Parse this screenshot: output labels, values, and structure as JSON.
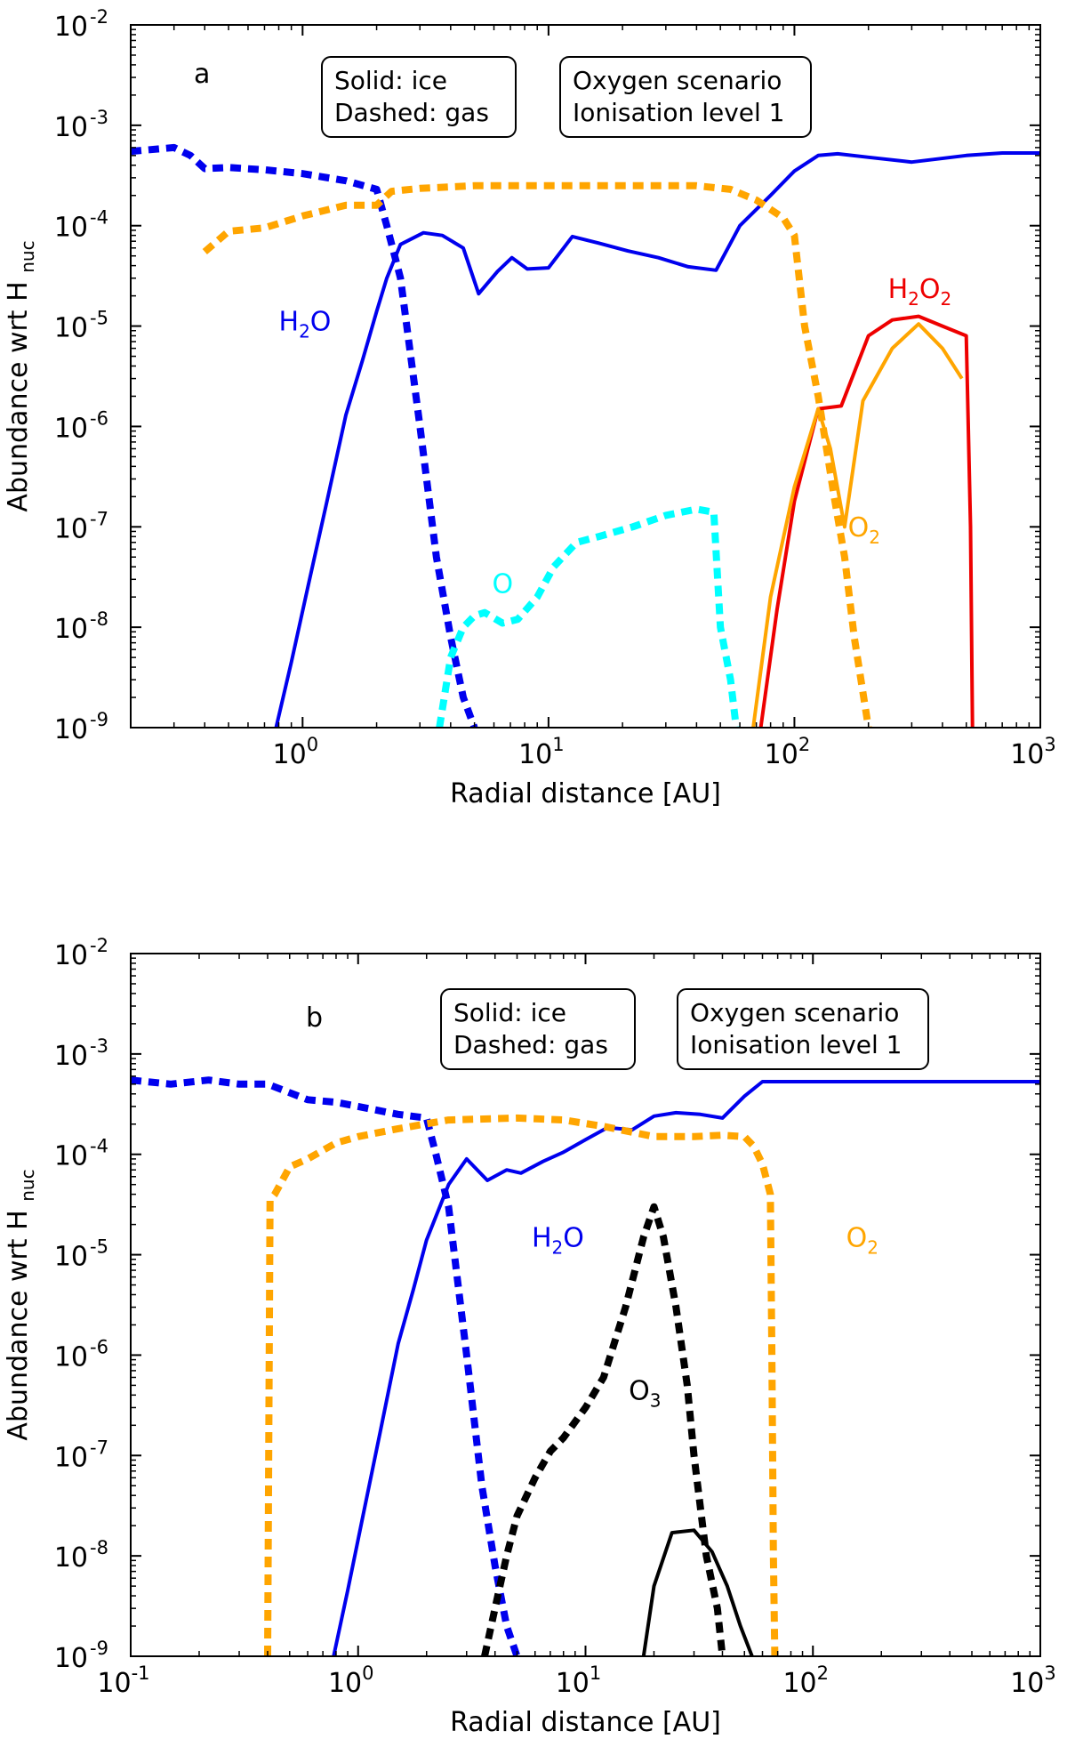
{
  "chart_data": [
    {
      "type": "line",
      "panel_label": "a",
      "xlabel": "Radial distance [AU]",
      "ylabel": "Abundance wrt H",
      "ylabel_sub": "nuc",
      "xscale": "log",
      "yscale": "log",
      "xlim": [
        0.2,
        1000
      ],
      "ylim": [
        1e-09,
        0.01
      ],
      "xticks": [
        {
          "value": 1,
          "base": "10",
          "exp": "0"
        },
        {
          "value": 10,
          "base": "10",
          "exp": "1"
        },
        {
          "value": 100,
          "base": "10",
          "exp": "2"
        },
        {
          "value": 1000,
          "base": "10",
          "exp": "3"
        }
      ],
      "yticks": [
        {
          "value": 1e-09,
          "base": "10",
          "exp": "-9"
        },
        {
          "value": 1e-08,
          "base": "10",
          "exp": "-8"
        },
        {
          "value": 1e-07,
          "base": "10",
          "exp": "-7"
        },
        {
          "value": 1e-06,
          "base": "10",
          "exp": "-6"
        },
        {
          "value": 1e-05,
          "base": "10",
          "exp": "-5"
        },
        {
          "value": 0.0001,
          "base": "10",
          "exp": "-4"
        },
        {
          "value": 0.001,
          "base": "10",
          "exp": "-3"
        },
        {
          "value": 0.01,
          "base": "10",
          "exp": "-2"
        }
      ],
      "legend_box": {
        "line1": "Solid: ice",
        "line2": "Dashed: gas"
      },
      "scenario_box": {
        "line1": "Oxygen scenario",
        "line2": "Ionisation level 1"
      },
      "series": [
        {
          "name": "H2O ice",
          "color": "#0000ee",
          "style": "solid",
          "x": [
            0.78,
            0.9,
            1.05,
            1.25,
            1.5,
            1.75,
            2.0,
            2.2,
            2.5,
            3.1,
            3.7,
            4.5,
            5.2,
            6.2,
            7.1,
            8.2,
            10,
            12.5,
            16,
            21,
            28,
            37,
            48,
            60,
            80,
            100,
            125,
            150,
            200,
            300,
            500,
            700,
            1000
          ],
          "y": [
            1e-09,
            4.5e-09,
            2.5e-08,
            1.7e-07,
            1.3e-06,
            4.5e-06,
            1.4e-05,
            3e-05,
            6.5e-05,
            8.5e-05,
            8e-05,
            6e-05,
            2.1e-05,
            3.5e-05,
            4.8e-05,
            3.7e-05,
            3.8e-05,
            7.8e-05,
            6.7e-05,
            5.6e-05,
            4.8e-05,
            3.9e-05,
            3.6e-05,
            0.0001,
            0.0002,
            0.00035,
            0.0005,
            0.00052,
            0.00048,
            0.00043,
            0.0005,
            0.00053,
            0.00053
          ]
        },
        {
          "name": "H2O gas",
          "color": "#0000ee",
          "style": "dashed",
          "x": [
            0.2,
            0.3,
            0.35,
            0.4,
            0.5,
            0.7,
            1.0,
            1.5,
            2.0,
            2.2,
            2.5,
            3.0,
            3.5,
            4.0,
            4.5,
            5.0
          ],
          "y": [
            0.00055,
            0.0006,
            0.0005,
            0.00037,
            0.00038,
            0.00036,
            0.00033,
            0.00028,
            0.00023,
            0.0001,
            3e-05,
            1e-06,
            5e-08,
            8e-09,
            2e-09,
            1e-09
          ]
        },
        {
          "name": "O2 gas",
          "color": "#ffa500",
          "style": "dashed",
          "x": [
            0.4,
            0.5,
            0.7,
            1.0,
            1.5,
            2.0,
            2.3,
            3.0,
            5.0,
            10,
            20,
            40,
            55,
            70,
            90,
            100,
            110,
            125,
            145,
            160,
            175,
            200
          ],
          "y": [
            5.5e-05,
            8.8e-05,
            9.5e-05,
            0.000125,
            0.00016,
            0.00016,
            0.00022,
            0.000235,
            0.00025,
            0.00025,
            0.00025,
            0.00025,
            0.00023,
            0.00018,
            0.00012,
            8e-05,
            1e-05,
            2e-06,
            2e-07,
            5e-08,
            8e-09,
            1e-09
          ]
        },
        {
          "name": "O gas",
          "color": "#00ffff",
          "style": "dashed",
          "x": [
            3.6,
            4.0,
            4.5,
            5.0,
            5.5,
            6.5,
            7.5,
            9,
            10.5,
            13,
            16,
            22,
            30,
            40,
            47,
            50,
            55,
            58
          ],
          "y": [
            1e-09,
            5e-09,
            1e-08,
            1.3e-08,
            1.4e-08,
            1.1e-08,
            1.2e-08,
            2e-08,
            4e-08,
            7e-08,
            8e-08,
            1e-07,
            1.3e-07,
            1.5e-07,
            1.4e-07,
            1e-08,
            3e-09,
            1e-09
          ]
        },
        {
          "name": "H2O2 ice",
          "color": "#ee0000",
          "style": "solid",
          "x": [
            73,
            85,
            100,
            125,
            155,
            200,
            250,
            320,
            400,
            500,
            520,
            530
          ],
          "y": [
            1e-09,
            1.5e-08,
            1.8e-07,
            1.5e-06,
            1.6e-06,
            8e-06,
            1.15e-05,
            1.25e-05,
            1e-05,
            8e-06,
            1e-07,
            1e-09
          ]
        },
        {
          "name": "O2 ice",
          "color": "#ffa500",
          "style": "solid",
          "x": [
            68,
            80,
            100,
            125,
            140,
            160,
            190,
            250,
            320,
            400,
            480
          ],
          "y": [
            1e-09,
            2e-08,
            2.5e-07,
            1.5e-06,
            6e-07,
            1e-07,
            1.8e-06,
            6e-06,
            1.05e-05,
            6e-06,
            3e-06
          ]
        }
      ],
      "labels": [
        {
          "text": "H",
          "sub": "2",
          "tail": "O",
          "color": "#0000ee",
          "x": 0.8,
          "y": 9e-06
        },
        {
          "text": "H",
          "sub": "2",
          "tail": "O",
          "sub2": "2",
          "color": "#ee0000",
          "x": 240,
          "y": 1.9e-05
        },
        {
          "text": "O",
          "sub": "2",
          "tail": "",
          "color": "#ffa500",
          "x": 165,
          "y": 8e-08
        },
        {
          "text": "O",
          "sub": "",
          "tail": "",
          "color": "#00ffff",
          "x": 5.9,
          "y": 2.2e-08
        }
      ]
    },
    {
      "type": "line",
      "panel_label": "b",
      "xlabel": "Radial distance [AU]",
      "ylabel": "Abundance wrt H",
      "ylabel_sub": "nuc",
      "xscale": "log",
      "yscale": "log",
      "xlim": [
        0.1,
        1000
      ],
      "ylim": [
        1e-09,
        0.01
      ],
      "xticks": [
        {
          "value": 0.1,
          "base": "10",
          "exp": "-1"
        },
        {
          "value": 1,
          "base": "10",
          "exp": "0"
        },
        {
          "value": 10,
          "base": "10",
          "exp": "1"
        },
        {
          "value": 100,
          "base": "10",
          "exp": "2"
        },
        {
          "value": 1000,
          "base": "10",
          "exp": "3"
        }
      ],
      "yticks": [
        {
          "value": 1e-09,
          "base": "10",
          "exp": "-9"
        },
        {
          "value": 1e-08,
          "base": "10",
          "exp": "-8"
        },
        {
          "value": 1e-07,
          "base": "10",
          "exp": "-7"
        },
        {
          "value": 1e-06,
          "base": "10",
          "exp": "-6"
        },
        {
          "value": 1e-05,
          "base": "10",
          "exp": "-5"
        },
        {
          "value": 0.0001,
          "base": "10",
          "exp": "-4"
        },
        {
          "value": 0.001,
          "base": "10",
          "exp": "-3"
        },
        {
          "value": 0.01,
          "base": "10",
          "exp": "-2"
        }
      ],
      "legend_box": {
        "line1": "Solid: ice",
        "line2": "Dashed: gas"
      },
      "scenario_box": {
        "line1": "Oxygen scenario",
        "line2": "Ionisation level 1"
      },
      "series": [
        {
          "name": "H2O ice",
          "color": "#0000ee",
          "style": "solid",
          "x": [
            0.78,
            0.9,
            1.05,
            1.25,
            1.5,
            1.75,
            2.0,
            2.5,
            3.0,
            3.7,
            4.5,
            5.2,
            6.5,
            8,
            10,
            12.5,
            16,
            20,
            25,
            32,
            40,
            50,
            60,
            80,
            100,
            200,
            500,
            1000
          ],
          "y": [
            1e-09,
            4.5e-09,
            2.5e-08,
            1.7e-07,
            1.3e-06,
            4.5e-06,
            1.4e-05,
            5e-05,
            9e-05,
            5.5e-05,
            7e-05,
            6.5e-05,
            8.5e-05,
            0.000105,
            0.00014,
            0.000185,
            0.000175,
            0.00024,
            0.00026,
            0.00025,
            0.00023,
            0.00038,
            0.00053,
            0.00053,
            0.00053,
            0.00053,
            0.00053,
            0.00053
          ]
        },
        {
          "name": "H2O gas",
          "color": "#0000ee",
          "style": "dashed",
          "x": [
            0.1,
            0.15,
            0.22,
            0.3,
            0.4,
            0.6,
            0.8,
            1.0,
            1.5,
            2.0,
            2.2,
            2.5,
            3.0,
            3.5,
            4.0,
            4.5,
            5.0
          ],
          "y": [
            0.00055,
            0.0005,
            0.00055,
            0.0005,
            0.0005,
            0.00035,
            0.00033,
            0.0003,
            0.00025,
            0.00023,
            0.0001,
            3e-05,
            1e-06,
            5e-08,
            8e-09,
            2e-09,
            1e-09
          ]
        },
        {
          "name": "O2 gas",
          "color": "#ffa500",
          "style": "dashed",
          "x": [
            0.4,
            0.41,
            0.43,
            0.5,
            0.6,
            0.8,
            1.0,
            1.5,
            2.5,
            5,
            8,
            12,
            20,
            30,
            40,
            50,
            55,
            60,
            65,
            66,
            67,
            68
          ],
          "y": [
            1e-09,
            3.5e-05,
            4e-05,
            7.5e-05,
            9e-05,
            0.00013,
            0.00015,
            0.00018,
            0.00022,
            0.00023,
            0.00022,
            0.00019,
            0.00015,
            0.00015,
            0.000155,
            0.00015,
            0.00012,
            8e-05,
            4e-05,
            1e-06,
            1e-08,
            1e-09
          ]
        },
        {
          "name": "O3 gas",
          "color": "#000000",
          "style": "dashed",
          "x": [
            3.6,
            4.0,
            4.5,
            5.0,
            6.0,
            7.0,
            8.0,
            10,
            12,
            15,
            18,
            20,
            22,
            25,
            28,
            30,
            34,
            38,
            40
          ],
          "y": [
            1e-09,
            3e-09,
            1e-08,
            2.5e-08,
            6e-08,
            1.1e-07,
            1.5e-07,
            3e-07,
            6e-07,
            3e-06,
            1.5e-05,
            3e-05,
            1.5e-05,
            3e-06,
            5e-07,
            1e-07,
            1e-08,
            3e-09,
            1e-09
          ]
        },
        {
          "name": "O3 ice",
          "color": "#000000",
          "style": "solid",
          "x": [
            18,
            20,
            24,
            30,
            36,
            42,
            48,
            54
          ],
          "y": [
            1e-09,
            5e-09,
            1.7e-08,
            1.8e-08,
            1.1e-08,
            5e-09,
            2e-09,
            1e-09
          ]
        }
      ],
      "labels": [
        {
          "text": "H",
          "sub": "2",
          "tail": "O",
          "color": "#0000ee",
          "x": 5.8,
          "y": 1.2e-05
        },
        {
          "text": "O",
          "sub": "2",
          "tail": "",
          "color": "#ffa500",
          "x": 140,
          "y": 1.2e-05
        },
        {
          "text": "O",
          "sub": "3",
          "tail": "",
          "color": "#000000",
          "x": 15.5,
          "y": 3.6e-07
        }
      ]
    }
  ]
}
